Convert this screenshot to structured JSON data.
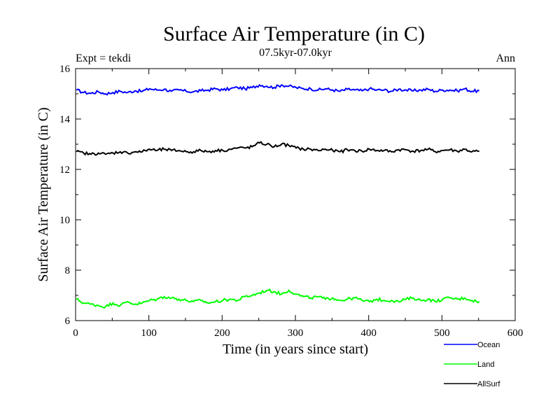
{
  "chart_data": {
    "type": "line",
    "title": "Surface Air Temperature (in C)",
    "subtitle": "07.5kyr-07.0kyr",
    "left_note": "Expt = tekdi",
    "right_note": "Ann",
    "xlabel": "Time (in years since start)",
    "ylabel": "Surface Air Temperature (in C)",
    "xlim": [
      0,
      600
    ],
    "ylim": [
      6,
      16
    ],
    "x_ticks": [
      0,
      100,
      200,
      300,
      400,
      500,
      600
    ],
    "x_tick_labels": [
      "0",
      "100",
      "200",
      "300",
      "400",
      "500",
      "600"
    ],
    "y_ticks": [
      6,
      8,
      10,
      12,
      14,
      16
    ],
    "y_tick_labels": [
      "6",
      "8",
      "10",
      "12",
      "14",
      "16"
    ],
    "legend_position": "bottom-right, below plot",
    "series": [
      {
        "name": "Ocean",
        "color": "#0000ff",
        "x_start": 1,
        "x_step": 10,
        "values": [
          15.15,
          15.05,
          15.02,
          15.08,
          15.0,
          15.05,
          15.1,
          15.05,
          15.12,
          15.1,
          15.2,
          15.15,
          15.18,
          15.1,
          15.15,
          15.1,
          15.08,
          15.12,
          15.15,
          15.2,
          15.15,
          15.2,
          15.25,
          15.2,
          15.25,
          15.35,
          15.3,
          15.25,
          15.35,
          15.3,
          15.25,
          15.2,
          15.2,
          15.15,
          15.2,
          15.15,
          15.1,
          15.18,
          15.15,
          15.12,
          15.2,
          15.15,
          15.15,
          15.1,
          15.18,
          15.15,
          15.12,
          15.15,
          15.18,
          15.1,
          15.15,
          15.15,
          15.12,
          15.2,
          15.1,
          15.12
        ]
      },
      {
        "name": "Land",
        "color": "#00ff00",
        "x_start": 1,
        "x_step": 10,
        "values": [
          6.85,
          6.7,
          6.65,
          6.6,
          6.55,
          6.7,
          6.6,
          6.75,
          6.65,
          6.7,
          6.8,
          6.85,
          6.95,
          6.9,
          6.85,
          6.8,
          6.75,
          6.8,
          6.7,
          6.75,
          6.8,
          6.85,
          6.8,
          6.95,
          7.0,
          7.1,
          7.2,
          7.15,
          7.05,
          7.2,
          7.05,
          6.95,
          6.9,
          6.95,
          6.85,
          6.9,
          6.8,
          6.85,
          6.9,
          6.8,
          6.75,
          6.85,
          6.8,
          6.8,
          6.75,
          6.85,
          6.9,
          6.8,
          6.85,
          6.75,
          6.85,
          6.9,
          6.85,
          6.9,
          6.8,
          6.75
        ]
      },
      {
        "name": "AllSurf",
        "color": "#000000",
        "x_start": 1,
        "x_step": 10,
        "values": [
          12.7,
          12.65,
          12.6,
          12.65,
          12.6,
          12.65,
          12.7,
          12.65,
          12.7,
          12.7,
          12.8,
          12.75,
          12.8,
          12.75,
          12.75,
          12.7,
          12.7,
          12.75,
          12.7,
          12.75,
          12.75,
          12.8,
          12.85,
          12.85,
          12.9,
          13.05,
          13.0,
          12.9,
          13.0,
          12.95,
          12.85,
          12.8,
          12.8,
          12.75,
          12.8,
          12.75,
          12.7,
          12.78,
          12.75,
          12.72,
          12.8,
          12.75,
          12.75,
          12.7,
          12.78,
          12.78,
          12.72,
          12.75,
          12.8,
          12.7,
          12.75,
          12.78,
          12.72,
          12.8,
          12.7,
          12.72
        ]
      }
    ]
  }
}
